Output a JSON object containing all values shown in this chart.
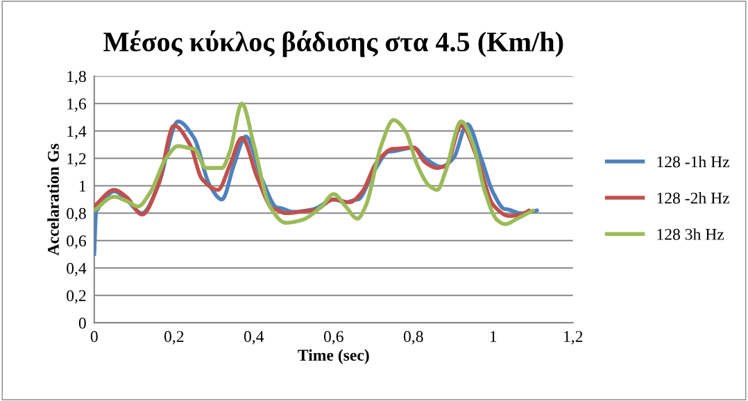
{
  "chart_data": {
    "type": "line",
    "title": "Μέσος κύκλος βάδισης στα 4.5 (Km/h)",
    "xlabel": "Time (sec)",
    "ylabel": "Accelaration Gs",
    "xlim": [
      0,
      1.2
    ],
    "xticks": [
      0,
      {
        "value": 0.2,
        "label": "0,2"
      },
      {
        "value": 0.4,
        "label": "0,4"
      },
      {
        "value": 0.6,
        "label": "0,6"
      },
      {
        "value": 0.8,
        "label": "0,8"
      },
      1,
      {
        "value": 1.2,
        "label": "1,2"
      }
    ],
    "ylim": [
      0,
      1.8
    ],
    "yticks": [
      0,
      {
        "value": 0.2,
        "label": "0,2"
      },
      {
        "value": 0.4,
        "label": "0,4"
      },
      {
        "value": 0.6,
        "label": "0,6"
      },
      {
        "value": 0.8,
        "label": "0,8"
      },
      1,
      {
        "value": 1.2,
        "label": "1,2"
      },
      {
        "value": 1.4,
        "label": "1,4"
      },
      {
        "value": 1.6,
        "label": "1,6"
      },
      {
        "value": 1.8,
        "label": "1,8"
      }
    ],
    "grid": "y",
    "legend": "right",
    "marker": "none",
    "line_style": "solid",
    "series": [
      {
        "name": "128 -1h Hz",
        "color": "#4f81bd",
        "x": [
          0,
          0.005,
          0.015,
          0.05,
          0.08,
          0.12,
          0.16,
          0.21,
          0.25,
          0.29,
          0.32,
          0.35,
          0.38,
          0.42,
          0.46,
          0.5,
          0.55,
          0.6,
          0.63,
          0.66,
          0.7,
          0.74,
          0.78,
          0.8,
          0.83,
          0.87,
          0.9,
          0.935,
          0.97,
          1.0,
          1.03,
          1.07,
          1.11
        ],
        "values": [
          0.5,
          0.82,
          0.86,
          0.96,
          0.9,
          0.8,
          1.0,
          1.47,
          1.35,
          1.0,
          0.9,
          1.15,
          1.36,
          1.05,
          0.84,
          0.81,
          0.83,
          0.9,
          0.88,
          0.9,
          1.1,
          1.25,
          1.27,
          1.28,
          1.2,
          1.14,
          1.2,
          1.45,
          1.2,
          0.95,
          0.83,
          0.8,
          0.82
        ]
      },
      {
        "name": "128 -2h Hz",
        "color": "#c0504d",
        "x": [
          0,
          0.05,
          0.08,
          0.12,
          0.16,
          0.2,
          0.24,
          0.27,
          0.31,
          0.34,
          0.37,
          0.41,
          0.45,
          0.48,
          0.55,
          0.6,
          0.64,
          0.67,
          0.71,
          0.75,
          0.8,
          0.83,
          0.86,
          0.88,
          0.92,
          0.96,
          1.0,
          1.04,
          1.07,
          1.09
        ],
        "values": [
          0.85,
          0.97,
          0.92,
          0.79,
          1.0,
          1.44,
          1.3,
          1.05,
          0.97,
          1.15,
          1.35,
          1.05,
          0.83,
          0.8,
          0.82,
          0.9,
          0.88,
          0.95,
          1.18,
          1.27,
          1.28,
          1.17,
          1.13,
          1.14,
          1.44,
          1.2,
          0.86,
          0.78,
          0.79,
          0.82
        ]
      },
      {
        "name": "128 3h Hz",
        "color": "#9bbb59",
        "x": [
          0,
          0.05,
          0.08,
          0.11,
          0.14,
          0.18,
          0.21,
          0.25,
          0.28,
          0.32,
          0.34,
          0.37,
          0.4,
          0.44,
          0.48,
          0.52,
          0.57,
          0.6,
          0.63,
          0.66,
          0.68,
          0.72,
          0.75,
          0.78,
          0.81,
          0.84,
          0.86,
          0.88,
          0.92,
          0.95,
          0.98,
          1.01,
          1.03,
          1.06,
          1.1
        ],
        "values": [
          0.82,
          0.92,
          0.89,
          0.85,
          0.95,
          1.2,
          1.29,
          1.27,
          1.13,
          1.13,
          1.25,
          1.6,
          1.3,
          0.85,
          0.73,
          0.75,
          0.85,
          0.94,
          0.85,
          0.76,
          0.85,
          1.3,
          1.48,
          1.4,
          1.15,
          1.0,
          0.97,
          1.1,
          1.47,
          1.3,
          0.95,
          0.75,
          0.72,
          0.76,
          0.82
        ]
      }
    ]
  }
}
